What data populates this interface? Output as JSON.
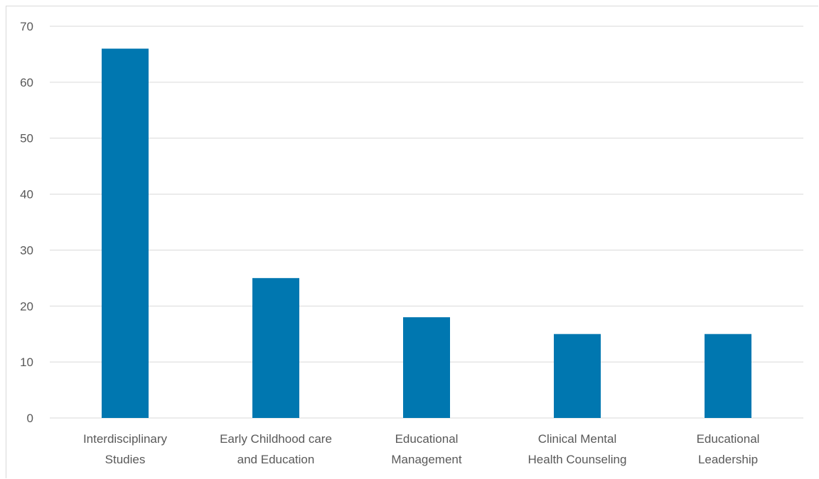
{
  "chart_data": {
    "type": "bar",
    "categories": [
      [
        "Interdisciplinary",
        "Studies"
      ],
      [
        "Early Childhood care",
        "and Education"
      ],
      [
        "Educational",
        "Management"
      ],
      [
        "Clinical Mental",
        "Health Counseling"
      ],
      [
        "Educational",
        "Leadership"
      ]
    ],
    "values": [
      66,
      25,
      18,
      15,
      15
    ],
    "ylim": [
      0,
      70
    ],
    "yticks": [
      0,
      10,
      20,
      30,
      40,
      50,
      60,
      70
    ],
    "grid": true,
    "bar_color": "#0077B0",
    "grid_color": "#d9d9d9",
    "legend": "none"
  }
}
